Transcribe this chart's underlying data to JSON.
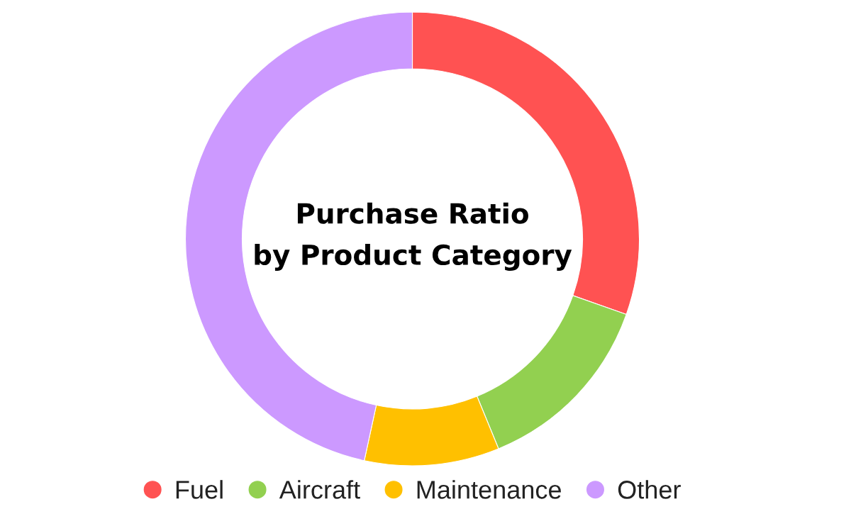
{
  "chart_data": {
    "type": "donut",
    "title": "Purchase Ratio\nby Product Category",
    "categories": [
      "Fuel",
      "Aircraft",
      "Maintenance",
      "Other"
    ],
    "values": [
      30.4,
      13.4,
      9.6,
      46.6
    ],
    "colors": [
      "#ff5252",
      "#92d050",
      "#ffc000",
      "#cc99ff"
    ],
    "legend": "bottom"
  }
}
